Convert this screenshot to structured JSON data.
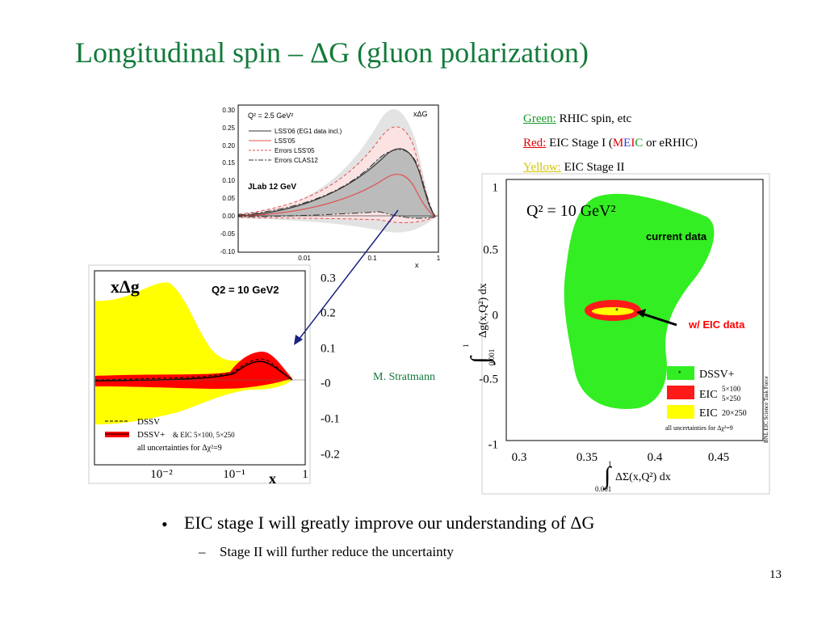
{
  "title": "Longitudinal spin – ΔG (gluon polarization)",
  "notes": [
    {
      "label": "Green:",
      "parts": [
        "RHIC spin, etc"
      ]
    },
    {
      "label": "Red:",
      "parts": [
        "EIC Stage I (",
        "M",
        "E",
        "I",
        "C",
        " or eRHIC)"
      ]
    },
    {
      "label": "Yellow:",
      "parts": [
        "EIC Stage II"
      ]
    }
  ],
  "figures": [
    {
      "title": "xΔG",
      "scale": "Q² = 2.5 GeV²",
      "legend": [
        "LSS'06 (EG1 data incl.)",
        "LSS'05",
        "Errors LSS'05",
        "Errors CLAS12"
      ],
      "tag": "JLab 12 GeV",
      "yticks": [
        "0.30",
        "0.25",
        "0.20",
        "0.15",
        "0.10",
        "0.05",
        "0.00",
        "-0.05",
        "-0.10"
      ],
      "xticks": [
        "0.01",
        "0.1",
        "1"
      ],
      "xlabel": "x"
    },
    {
      "title": "xΔg",
      "scale": "Q2 = 10 GeV2",
      "legend": [
        "DSSV",
        "DSSV+",
        "& EIC 5×100, 5×250",
        "all uncertainties for Δχ²=9"
      ],
      "yticks": [
        "0.3",
        "0.2",
        "0.1",
        "-0",
        "-0.1",
        "-0.2"
      ],
      "xticks": [
        "10⁻²",
        "10⁻¹",
        "1"
      ],
      "xlabel": "x"
    },
    {
      "scale": "Q² = 10 GeV²",
      "annotations": [
        "current data",
        "w/ EIC data"
      ],
      "legend": [
        "DSSV+",
        "EIC",
        "5×100",
        "5×250",
        "EIC",
        "20×250",
        "all uncertainties for Δχ²=9"
      ],
      "credit": "BNL EIC Science Task Force",
      "yticks": [
        "1",
        "0.5",
        "0",
        "-0.5",
        "-1"
      ],
      "xticks": [
        "0.3",
        "0.35",
        "0.4",
        "0.45"
      ],
      "ylabel": {
        "upper": "1",
        "lower": "0.001",
        "expr": "Δg(x,Q²) dx"
      },
      "xlabel": {
        "upper": "1",
        "lower": "0.001",
        "expr": "ΔΣ(x,Q²) dx"
      }
    }
  ],
  "author": "M. Stratmann",
  "bullets": [
    {
      "text": "EIC stage I will greatly improve our understanding of ΔG",
      "sub": [
        "Stage II will further reduce the uncertainty"
      ]
    }
  ],
  "page_number": "13"
}
